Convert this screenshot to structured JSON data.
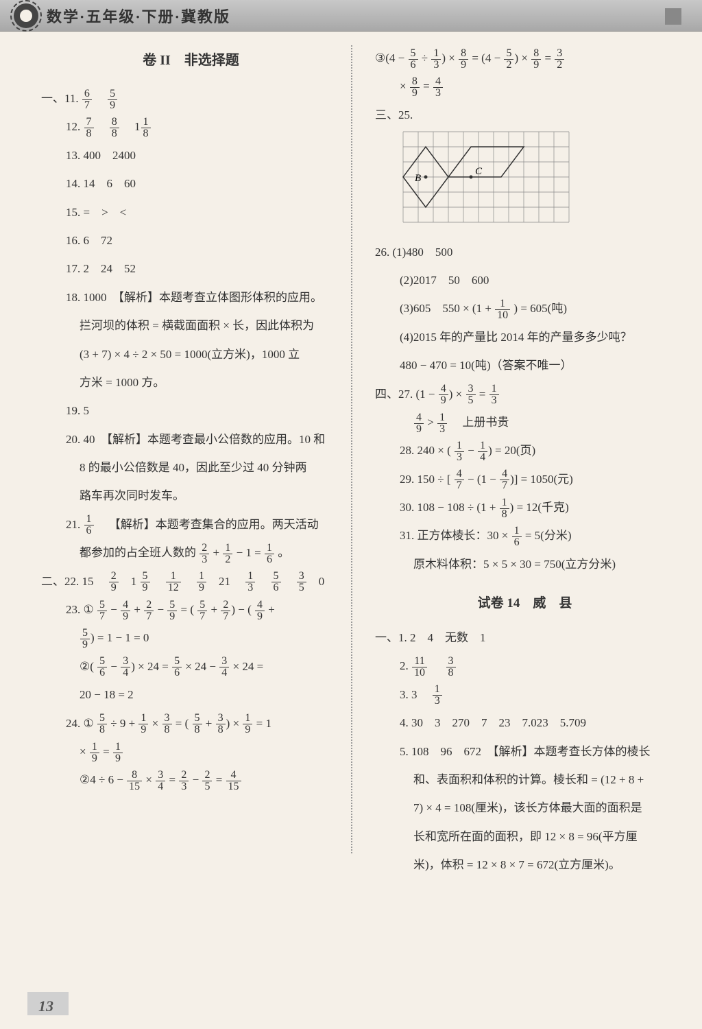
{
  "header": {
    "title": "数学·五年级·下册·冀教版"
  },
  "section_title": "卷 II　非选择题",
  "left_col": {
    "q11_prefix": "一、11.",
    "q11_f1": {
      "n": "6",
      "d": "7"
    },
    "q11_f2": {
      "n": "5",
      "d": "9"
    },
    "q12_prefix": "12.",
    "q12_f1": {
      "n": "7",
      "d": "8"
    },
    "q12_f2": {
      "n": "8",
      "d": "8"
    },
    "q12_whole": "1",
    "q12_f3": {
      "n": "1",
      "d": "8"
    },
    "q13": "13. 400　2400",
    "q14": "14. 14　6　60",
    "q15": "15. =　>　<",
    "q16": "16. 6　72",
    "q17": "17. 2　24　52",
    "q18_l1": "18. 1000　【解析】本题考查立体图形体积的应用。",
    "q18_l2": "拦河坝的体积 = 横截面面积 × 长，因此体积为",
    "q18_l3": "(3 + 7) × 4 ÷ 2 × 50 = 1000(立方米)，1000 立",
    "q18_l4": "方米 = 1000 方。",
    "q19": "19. 5",
    "q20_l1": "20. 40　【解析】本题考查最小公倍数的应用。10 和",
    "q20_l2": "8 的最小公倍数是 40，因此至少过 40 分钟两",
    "q20_l3": "路车再次同时发车。",
    "q21_prefix": "21.",
    "q21_f": {
      "n": "1",
      "d": "6"
    },
    "q21_l1": "【解析】本题考查集合的应用。两天活动",
    "q21_l2a": "都参加的占全班人数的",
    "q21_f2": {
      "n": "2",
      "d": "3"
    },
    "q21_plus": " + ",
    "q21_f3": {
      "n": "1",
      "d": "2"
    },
    "q21_l2b": " − 1 = ",
    "q21_f4": {
      "n": "1",
      "d": "6"
    },
    "q21_end": "。",
    "q22_prefix": "二、22. 15　",
    "q22_f1": {
      "n": "2",
      "d": "9"
    },
    "q22_s1": "　1",
    "q22_f2": {
      "n": "5",
      "d": "9"
    },
    "q22_s2": "　",
    "q22_f3": {
      "n": "1",
      "d": "12"
    },
    "q22_s3": "　",
    "q22_f4": {
      "n": "1",
      "d": "9"
    },
    "q22_s4": "　21　",
    "q22_f5": {
      "n": "1",
      "d": "3"
    },
    "q22_s5": "　",
    "q22_f6": {
      "n": "5",
      "d": "6"
    },
    "q22_s6": "　",
    "q22_f7": {
      "n": "3",
      "d": "5"
    },
    "q22_s7": "　0",
    "q23_prefix": "23. ①",
    "q23_f1": {
      "n": "5",
      "d": "7"
    },
    "q23_m1": " − ",
    "q23_f2": {
      "n": "4",
      "d": "9"
    },
    "q23_m2": " + ",
    "q23_f3": {
      "n": "2",
      "d": "7"
    },
    "q23_m3": " − ",
    "q23_f4": {
      "n": "5",
      "d": "9"
    },
    "q23_m4": " = (",
    "q23_f5": {
      "n": "5",
      "d": "7"
    },
    "q23_m5": " + ",
    "q23_f6": {
      "n": "2",
      "d": "7"
    },
    "q23_m6": ") − (",
    "q23_f7": {
      "n": "4",
      "d": "9"
    },
    "q23_m7": " + ",
    "q23_l2_f": {
      "n": "5",
      "d": "9"
    },
    "q23_l2": ") = 1 − 1 = 0",
    "q23b_prefix": "②(",
    "q23b_f1": {
      "n": "5",
      "d": "6"
    },
    "q23b_m1": " − ",
    "q23b_f2": {
      "n": "3",
      "d": "4"
    },
    "q23b_m2": ") × 24 = ",
    "q23b_f3": {
      "n": "5",
      "d": "6"
    },
    "q23b_m3": " × 24 − ",
    "q23b_f4": {
      "n": "3",
      "d": "4"
    },
    "q23b_m4": " × 24 =",
    "q23b_l2": "20 − 18 = 2",
    "q24_prefix": "24. ①",
    "q24_f1": {
      "n": "5",
      "d": "8"
    },
    "q24_m1": " ÷ 9 + ",
    "q24_f2": {
      "n": "1",
      "d": "9"
    },
    "q24_m2": " × ",
    "q24_f3": {
      "n": "3",
      "d": "8"
    },
    "q24_m3": " = (",
    "q24_f4": {
      "n": "5",
      "d": "8"
    },
    "q24_m4": " + ",
    "q24_f5": {
      "n": "3",
      "d": "8"
    },
    "q24_m5": ") × ",
    "q24_f6": {
      "n": "1",
      "d": "9"
    },
    "q24_m6": " = 1",
    "q24_l2a": "× ",
    "q24_l2_f1": {
      "n": "1",
      "d": "9"
    },
    "q24_l2b": " = ",
    "q24_l2_f2": {
      "n": "1",
      "d": "9"
    },
    "q24b_prefix": "②4 ÷ 6 − ",
    "q24b_f1": {
      "n": "8",
      "d": "15"
    },
    "q24b_m1": " × ",
    "q24b_f2": {
      "n": "3",
      "d": "4"
    },
    "q24b_m2": " = ",
    "q24b_f3": {
      "n": "2",
      "d": "3"
    },
    "q24b_m3": " − ",
    "q24b_f4": {
      "n": "2",
      "d": "5"
    },
    "q24b_m4": " = ",
    "q24b_f5": {
      "n": "4",
      "d": "15"
    }
  },
  "right_col": {
    "q3c_prefix": "③(4 − ",
    "q3c_f1": {
      "n": "5",
      "d": "6"
    },
    "q3c_m1": " ÷ ",
    "q3c_f2": {
      "n": "1",
      "d": "3"
    },
    "q3c_m2": ") × ",
    "q3c_f3": {
      "n": "8",
      "d": "9"
    },
    "q3c_m3": " = (4 − ",
    "q3c_f4": {
      "n": "5",
      "d": "2"
    },
    "q3c_m4": ") × ",
    "q3c_f5": {
      "n": "8",
      "d": "9"
    },
    "q3c_m5": " = ",
    "q3c_f6": {
      "n": "3",
      "d": "2"
    },
    "q3c_l2a": "× ",
    "q3c_l2_f1": {
      "n": "8",
      "d": "9"
    },
    "q3c_l2b": " = ",
    "q3c_l2_f2": {
      "n": "4",
      "d": "3"
    },
    "q25_prefix": "三、25.",
    "grid": {
      "cols": 11,
      "rows": 6,
      "cell": 22,
      "B_label": "B",
      "C_label": "C",
      "stroke": "#333",
      "B_point": [
        1.5,
        3
      ],
      "C_point": [
        4.5,
        3
      ],
      "shape1": [
        [
          0,
          3
        ],
        [
          1.5,
          1
        ],
        [
          3,
          3
        ],
        [
          1.5,
          5
        ]
      ],
      "shape2": [
        [
          3,
          3
        ],
        [
          4.5,
          1
        ],
        [
          8,
          1
        ],
        [
          6.5,
          3
        ]
      ]
    },
    "q26_1": "26.  (1)480　500",
    "q26_2": "(2)2017　50　600",
    "q26_3a": "(3)605　550 × (1 + ",
    "q26_3f": {
      "n": "1",
      "d": "10"
    },
    "q26_3b": ") = 605(吨)",
    "q26_4a": "(4)2015 年的产量比 2014 年的产量多多少吨？",
    "q26_4b": "480 − 470 = 10(吨)（答案不唯一）",
    "q27_prefix": "四、27.  (1 − ",
    "q27_f1": {
      "n": "4",
      "d": "9"
    },
    "q27_m1": ") × ",
    "q27_f2": {
      "n": "3",
      "d": "5"
    },
    "q27_m2": " = ",
    "q27_f3": {
      "n": "1",
      "d": "3"
    },
    "q27_l2_f1": {
      "n": "4",
      "d": "9"
    },
    "q27_l2a": " > ",
    "q27_l2_f2": {
      "n": "1",
      "d": "3"
    },
    "q27_l2b": "　上册书贵",
    "q28_prefix": "28.  240 × (",
    "q28_f1": {
      "n": "1",
      "d": "3"
    },
    "q28_m1": " − ",
    "q28_f2": {
      "n": "1",
      "d": "4"
    },
    "q28_m2": ") = 20(页)",
    "q29_prefix": "29.  150 ÷ [",
    "q29_f1": {
      "n": "4",
      "d": "7"
    },
    "q29_m1": " − (1 − ",
    "q29_f2": {
      "n": "4",
      "d": "7"
    },
    "q29_m2": ")] = 1050(元)",
    "q30_prefix": "30.  108 − 108 ÷ (1 + ",
    "q30_f1": {
      "n": "1",
      "d": "8"
    },
    "q30_m1": ") = 12(千克)",
    "q31_prefix": "31.  正方体棱长：30 × ",
    "q31_f1": {
      "n": "1",
      "d": "6"
    },
    "q31_m1": " = 5(分米)",
    "q31_l2": "原木料体积：5 × 5 × 30 = 750(立方分米)",
    "test14_title": "试卷 14　威　县",
    "t14_1": "一、1. 2　4　无数　1",
    "t14_2_prefix": "2.",
    "t14_2_f1": {
      "n": "11",
      "d": "10"
    },
    "t14_2_s": "　",
    "t14_2_f2": {
      "n": "3",
      "d": "8"
    },
    "t14_3_prefix": "3. 3　",
    "t14_3_f": {
      "n": "1",
      "d": "3"
    },
    "t14_4": "4. 30　3　270　7　23　7.023　5.709",
    "t14_5_l1": "5. 108　96　672　【解析】本题考查长方体的棱长",
    "t14_5_l2": "和、表面积和体积的计算。棱长和 = (12 + 8 +",
    "t14_5_l3": "7) × 4 = 108(厘米)，该长方体最大面的面积是",
    "t14_5_l4": "长和宽所在面的面积，即 12 × 8 = 96(平方厘",
    "t14_5_l5": "米)，体积 = 12 × 8 × 7 = 672(立方厘米)。"
  },
  "page_number": "13"
}
